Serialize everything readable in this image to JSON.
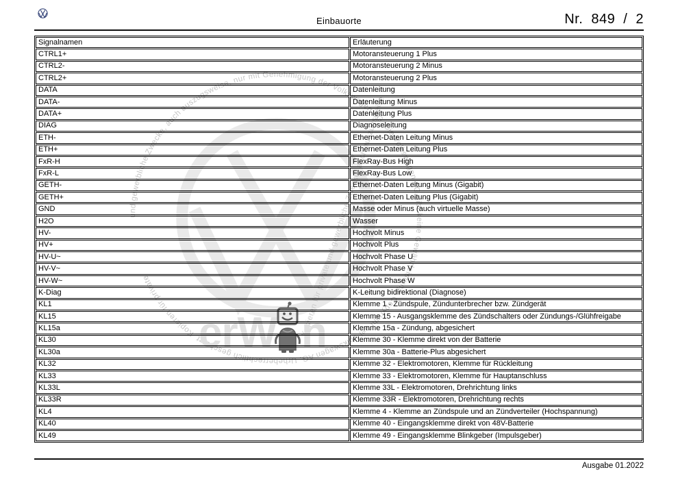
{
  "page": {
    "header": {
      "title": "Einbauorte",
      "page_number": "Nr. 849 / 2"
    },
    "footer": {
      "issue": "Ausgabe 01.2022"
    }
  },
  "table": {
    "columns": [
      "Signalnamen",
      "Erläuterung"
    ],
    "rows": [
      {
        "signal": "CTRL1+",
        "explanation": "Motoransteuerung 1 Plus"
      },
      {
        "signal": "CTRL2-",
        "explanation": "Motoransteuerung 2 Minus"
      },
      {
        "signal": "CTRL2+",
        "explanation": "Motoransteuerung 2 Plus"
      },
      {
        "signal": "DATA",
        "explanation": "Datenleitung"
      },
      {
        "signal": "DATA-",
        "explanation": "Datenleitung Minus"
      },
      {
        "signal": "DATA+",
        "explanation": "Datenleitung Plus"
      },
      {
        "signal": "DIAG",
        "explanation": "Diagnoseleitung"
      },
      {
        "signal": "ETH-",
        "explanation": "Ethernet-Daten Leitung Minus"
      },
      {
        "signal": "ETH+",
        "explanation": "Ethernet-Daten Leitung Plus"
      },
      {
        "signal": "FxR-H",
        "explanation": "FlexRay-Bus High"
      },
      {
        "signal": "FxR-L",
        "explanation": "FlexRay-Bus Low"
      },
      {
        "signal": "GETH-",
        "explanation": "Ethernet-Daten Leitung Minus (Gigabit)"
      },
      {
        "signal": "GETH+",
        "explanation": "Ethernet-Daten Leitung Plus (Gigabit)"
      },
      {
        "signal": "GND",
        "explanation": "Masse oder Minus (auch virtuelle Masse)"
      },
      {
        "signal": "H2O",
        "explanation": "Wasser"
      },
      {
        "signal": "HV-",
        "explanation": "Hochvolt Minus"
      },
      {
        "signal": "HV+",
        "explanation": "Hochvolt Plus"
      },
      {
        "signal": "HV-U~",
        "explanation": "Hochvolt Phase U"
      },
      {
        "signal": "HV-V~",
        "explanation": "Hochvolt Phase V"
      },
      {
        "signal": "HV-W~",
        "explanation": "Hochvolt Phase W"
      },
      {
        "signal": "K-Diag",
        "explanation": "K-Leitung bidirektional (Diagnose)"
      },
      {
        "signal": "KL1",
        "explanation": "Klemme 1 - Zündspule, Zündunterbrecher bzw. Zündgerät"
      },
      {
        "signal": "KL15",
        "explanation": "Klemme 15 - Ausgangsklemme des Zündschalters oder Zündungs-/Glühfreigabe"
      },
      {
        "signal": "KL15a",
        "explanation": "Klemme 15a - Zündung, abgesichert"
      },
      {
        "signal": "KL30",
        "explanation": "Klemme 30 - Klemme direkt von der Batterie"
      },
      {
        "signal": "KL30a",
        "explanation": "Klemme 30a - Batterie-Plus abgesichert"
      },
      {
        "signal": "KL32",
        "explanation": "Klemme 32 - Elektromotoren, Klemme für Rückleitung"
      },
      {
        "signal": "KL33",
        "explanation": "Klemme 33 - Elektromotoren, Klemme für Hauptanschluss"
      },
      {
        "signal": "KL33L",
        "explanation": "Klemme 33L - Elektromotoren, Drehrichtung links"
      },
      {
        "signal": "KL33R",
        "explanation": "Klemme 33R - Elektromotoren, Drehrichtung rechts"
      },
      {
        "signal": "KL4",
        "explanation": "Klemme 4 - Klemme an Zündspule und an Zündverteiler (Hochspannung)"
      },
      {
        "signal": "KL40",
        "explanation": "Klemme 40 - Eingangsklemme direkt von 48V-Batterie"
      },
      {
        "signal": "KL49",
        "explanation": "Klemme 49 - Eingangsklemme Blinkgeber (Impulsgeber)"
      }
    ]
  },
  "watermark": {
    "ring_text": "und gewerbliche Zwecke, auch auszugsweise, nur mit Genehmigung der Volkswagen AG. Die Volkswagen AG gibt keine Gewährleistung. Copyright bei Volkswagen AG. Urheberrechtlich geschützt. Kopieren für private",
    "diagonal_text": "Kopieren für private und gewerbliche Zwecke, auch auszugsweise",
    "brand_left": "erW",
    "brand_right": "n",
    "colors": {
      "logo": "#e9e9e9",
      "ring_text": "#c6c6c6",
      "brand": "#e0e0e0",
      "robot": "#5a5a5a"
    }
  },
  "colors": {
    "page_background": "#ffffff",
    "text": "#000000",
    "rule": "#111111",
    "vw_logo_blue": "#25356e"
  }
}
